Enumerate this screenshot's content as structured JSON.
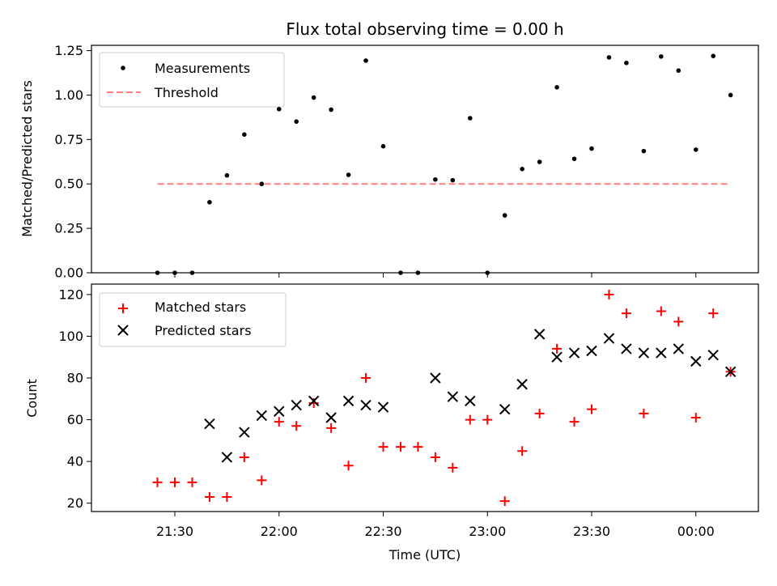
{
  "chart_data": {
    "type": "scatter",
    "title": "Flux total observing time = 0.00 h",
    "xlabel": "Time (UTC)",
    "x_tick_labels": [
      "21:30",
      "22:00",
      "22:30",
      "23:00",
      "23:30",
      "00:00"
    ],
    "times": [
      "21:25",
      "21:30",
      "21:35",
      "21:40",
      "21:45",
      "21:50",
      "21:55",
      "22:00",
      "22:05",
      "22:10",
      "22:15",
      "22:20",
      "22:25",
      "22:30",
      "22:35",
      "22:40",
      "22:45",
      "22:50",
      "22:55",
      "23:00",
      "23:05",
      "23:10",
      "23:15",
      "23:20",
      "23:25",
      "23:30",
      "23:35",
      "23:40",
      "23:45",
      "23:50",
      "23:55",
      "00:00",
      "00:05",
      "00:10"
    ],
    "top": {
      "ylabel": "Matched/Predicted stars",
      "ylim": [
        0,
        1.28
      ],
      "y_ticks": [
        "0.00",
        "0.25",
        "0.50",
        "0.75",
        "1.00",
        "1.25"
      ],
      "legend": {
        "placement": "top-left",
        "entries": [
          "Measurements",
          "Threshold"
        ]
      },
      "series": [
        {
          "name": "Measurements",
          "color": "#000000",
          "values": [
            0,
            0,
            0,
            0.397,
            0.548,
            0.778,
            0.5,
            0.921,
            0.851,
            0.986,
            0.918,
            0.551,
            1.194,
            0.712,
            0,
            0,
            0.525,
            0.521,
            0.87,
            0,
            0.323,
            0.584,
            0.624,
            1.044,
            0.641,
            0.699,
            1.212,
            1.181,
            0.685,
            1.217,
            1.138,
            0.693,
            1.22,
            1.0
          ]
        },
        {
          "name": "Threshold",
          "color": "#ff7f7f",
          "value": 0.5,
          "x_range": [
            "21:25",
            "00:10"
          ]
        }
      ]
    },
    "bottom": {
      "ylabel": "Count",
      "ylim": [
        16,
        125
      ],
      "y_ticks": [
        "20",
        "40",
        "60",
        "80",
        "100",
        "120"
      ],
      "legend": {
        "placement": "top-left",
        "entries": [
          "Matched stars",
          "Predicted stars"
        ]
      },
      "series": [
        {
          "name": "Matched stars",
          "color": "#ff0000",
          "marker": "+",
          "values": [
            30,
            30,
            30,
            23,
            23,
            42,
            31,
            59,
            57,
            68,
            56,
            38,
            80,
            47,
            47,
            47,
            42,
            37,
            60,
            60,
            21,
            45,
            63,
            94,
            59,
            65,
            120,
            111,
            63,
            112,
            107,
            61,
            111,
            83
          ]
        },
        {
          "name": "Predicted stars",
          "color": "#000000",
          "marker": "x",
          "values": [
            null,
            null,
            null,
            58,
            42,
            54,
            62,
            64,
            67,
            69,
            61,
            69,
            67,
            66,
            null,
            null,
            80,
            71,
            69,
            null,
            65,
            77,
            101,
            90,
            92,
            93,
            99,
            94,
            92,
            92,
            94,
            88,
            91,
            83
          ]
        }
      ]
    }
  }
}
